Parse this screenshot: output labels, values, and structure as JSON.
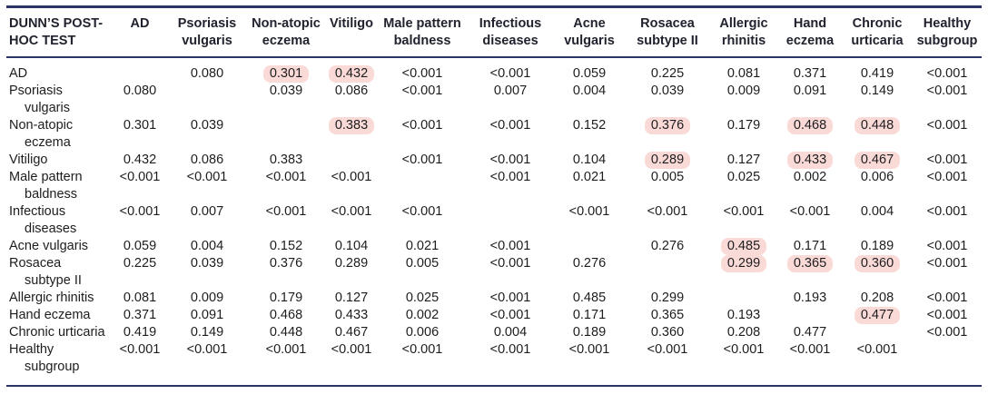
{
  "table": {
    "corner_label": "DUNN’S POST-HOC TEST",
    "rule_color": "#2b3468",
    "highlight_color": "#fadad6",
    "columns": [
      "AD",
      "Psoriasis vulgaris",
      "Non-atopic eczema",
      "Vitiligo",
      "Male pattern baldness",
      "Infectious diseases",
      "Acne vulgaris",
      "Rosacea subtype II",
      "Allergic rhinitis",
      "Hand eczema",
      "Chronic urticaria",
      "Healthy subgroup"
    ],
    "rows": [
      {
        "label": "AD",
        "values": [
          "",
          "0.080",
          "0.301",
          "0.432",
          "<0.001",
          "<0.001",
          "0.059",
          "0.225",
          "0.081",
          "0.371",
          "0.419",
          "<0.001"
        ],
        "highlighted": [
          2,
          3
        ]
      },
      {
        "label": "Psoriasis vulgaris",
        "values": [
          "0.080",
          "",
          "0.039",
          "0.086",
          "<0.001",
          "0.007",
          "0.004",
          "0.039",
          "0.009",
          "0.091",
          "0.149",
          "<0.001"
        ],
        "highlighted": []
      },
      {
        "label": "Non-atopic eczema",
        "values": [
          "0.301",
          "0.039",
          "",
          "0.383",
          "<0.001",
          "<0.001",
          "0.152",
          "0.376",
          "0.179",
          "0.468",
          "0.448",
          "<0.001"
        ],
        "highlighted": [
          3,
          7,
          9,
          10
        ]
      },
      {
        "label": "Vitiligo",
        "values": [
          "0.432",
          "0.086",
          "0.383",
          "",
          "<0.001",
          "<0.001",
          "0.104",
          "0.289",
          "0.127",
          "0.433",
          "0.467",
          "<0.001"
        ],
        "highlighted": [
          7,
          9,
          10
        ]
      },
      {
        "label": "Male pattern baldness",
        "values": [
          "<0.001",
          "<0.001",
          "<0.001",
          "<0.001",
          "",
          "<0.001",
          "0.021",
          "0.005",
          "0.025",
          "0.002",
          "0.006",
          "<0.001"
        ],
        "highlighted": []
      },
      {
        "label": "Infectious diseases",
        "values": [
          "<0.001",
          "0.007",
          "<0.001",
          "<0.001",
          "<0.001",
          "",
          "<0.001",
          "<0.001",
          "<0.001",
          "<0.001",
          "0.004",
          "<0.001"
        ],
        "highlighted": []
      },
      {
        "label": "Acne vulgaris",
        "values": [
          "0.059",
          "0.004",
          "0.152",
          "0.104",
          "0.021",
          "<0.001",
          "",
          "0.276",
          "0.485",
          "0.171",
          "0.189",
          "<0.001"
        ],
        "highlighted": [
          8
        ]
      },
      {
        "label": "Rosacea subtype II",
        "values": [
          "0.225",
          "0.039",
          "0.376",
          "0.289",
          "0.005",
          "<0.001",
          "0.276",
          "",
          "0.299",
          "0.365",
          "0.360",
          "<0.001"
        ],
        "highlighted": [
          8,
          9,
          10
        ]
      },
      {
        "label": "Allergic rhinitis",
        "values": [
          "0.081",
          "0.009",
          "0.179",
          "0.127",
          "0.025",
          "<0.001",
          "0.485",
          "0.299",
          "",
          "0.193",
          "0.208",
          "<0.001"
        ],
        "highlighted": []
      },
      {
        "label": "Hand eczema",
        "values": [
          "0.371",
          "0.091",
          "0.468",
          "0.433",
          "0.002",
          "<0.001",
          "0.171",
          "0.365",
          "0.193",
          "",
          "0.477",
          "<0.001"
        ],
        "highlighted": [
          10
        ]
      },
      {
        "label": "Chronic urticaria",
        "values": [
          "0.419",
          "0.149",
          "0.448",
          "0.467",
          "0.006",
          "0.004",
          "0.189",
          "0.360",
          "0.208",
          "0.477",
          "",
          "<0.001"
        ],
        "highlighted": []
      },
      {
        "label": "Healthy subgroup",
        "values": [
          "<0.001",
          "<0.001",
          "<0.001",
          "<0.001",
          "<0.001",
          "<0.001",
          "<0.001",
          "<0.001",
          "<0.001",
          "<0.001",
          "<0.001",
          ""
        ],
        "highlighted": []
      }
    ]
  }
}
